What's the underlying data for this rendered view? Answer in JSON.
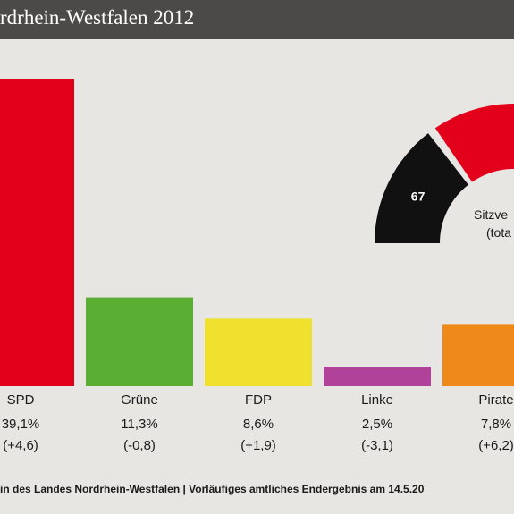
{
  "header": {
    "title": "rdrhein-Westfalen 2012"
  },
  "chart_data": [
    {
      "type": "bar",
      "categories": [
        "SPD",
        "Grüne",
        "FDP",
        "Linke",
        "Pirate"
      ],
      "values": [
        39.1,
        11.3,
        8.6,
        2.5,
        7.8
      ],
      "value_labels": [
        "39,1%",
        "11,3%",
        "8,6%",
        "2,5%",
        "7,8%"
      ],
      "change_labels": [
        "(+4,6)",
        "(-0,8)",
        "(+1,9)",
        "(-3,1)",
        "(+6,2)"
      ],
      "display_value_labels": [
        "39,1%",
        "11,3%",
        "8,6%",
        "2,5%",
        "7,8%"
      ],
      "display_change_labels": [
        "(+4,6)",
        "(-0,8)",
        "(+1,9)",
        "(-3,1)",
        "(+6,2)"
      ],
      "colors": [
        "#e2001a",
        "#5aae31",
        "#f0e12f",
        "#b0429a",
        "#ef8a1a"
      ],
      "ylim": [
        0,
        40
      ],
      "grid": false
    },
    {
      "type": "pie",
      "style": "semicircle",
      "visible_labels": [
        "67"
      ],
      "segments": [
        {
          "label": "67",
          "color": "#111111"
        },
        {
          "label": "",
          "color": "#e2001a"
        }
      ],
      "center_text": [
        "Sitzve",
        "(tota"
      ]
    }
  ],
  "footer": {
    "source": "in des Landes Nordrhein-Westfalen | Vorläufiges amtliches Endergebnis am 14.5.20"
  }
}
